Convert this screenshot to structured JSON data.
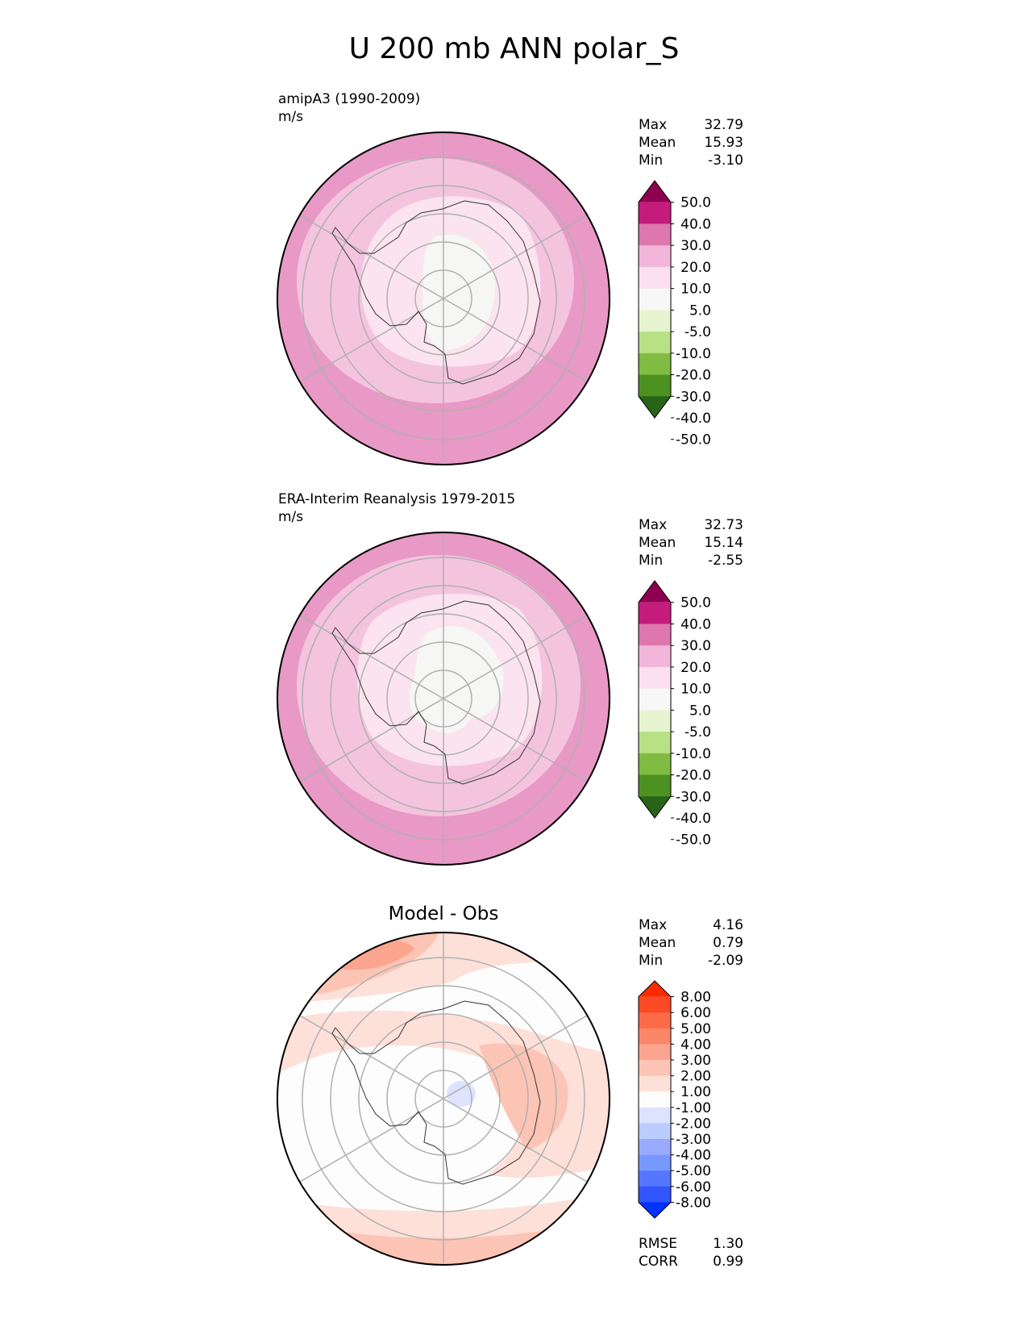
{
  "title": "U 200 mb ANN polar_S",
  "panels": [
    {
      "id": "test",
      "title_line1": "amipA3 (1990-2009)",
      "title_line2": "m/s",
      "stats": {
        "max_label": "Max",
        "max": "32.79",
        "mean_label": "Mean",
        "mean": "15.93",
        "min_label": "Min",
        "min": "-3.10"
      },
      "colorbar": {
        "colors": [
          "#276419",
          "#4d9221",
          "#7fbc41",
          "#b8e186",
          "#e6f5d0",
          "#f7f7f7",
          "#fde0ef",
          "#f1b6da",
          "#de77ae",
          "#c51b7d",
          "#8e0152"
        ],
        "labels": [
          "-50.0",
          "-40.0",
          "-30.0",
          "-20.0",
          "-10.0",
          "-5.0",
          "5.0",
          "10.0",
          "20.0",
          "30.0",
          "40.0",
          "50.0"
        ]
      }
    },
    {
      "id": "reference",
      "title_line1": "ERA-Interim Reanalysis 1979-2015",
      "title_line2": "m/s",
      "stats": {
        "max_label": "Max",
        "max": "32.73",
        "mean_label": "Mean",
        "mean": "15.14",
        "min_label": "Min",
        "min": "-2.55"
      },
      "colorbar": {
        "colors": [
          "#276419",
          "#4d9221",
          "#7fbc41",
          "#b8e186",
          "#e6f5d0",
          "#f7f7f7",
          "#fde0ef",
          "#f1b6da",
          "#de77ae",
          "#c51b7d",
          "#8e0152"
        ],
        "labels": [
          "-50.0",
          "-40.0",
          "-30.0",
          "-20.0",
          "-10.0",
          "-5.0",
          "5.0",
          "10.0",
          "20.0",
          "30.0",
          "40.0",
          "50.0"
        ]
      }
    },
    {
      "id": "diff",
      "center_title": "Model - Obs",
      "stats": {
        "max_label": "Max",
        "max": "4.16",
        "mean_label": "Mean",
        "mean": "0.79",
        "min_label": "Min",
        "min": "-2.09"
      },
      "metrics": {
        "rmse_label": "RMSE",
        "rmse": "1.30",
        "corr_label": "CORR",
        "corr": "0.99"
      },
      "colorbar": {
        "colors": [
          "#0033ff",
          "#3355ff",
          "#5577ff",
          "#7799ff",
          "#99aaff",
          "#bbccff",
          "#dde3ff",
          "#fdfdfd",
          "#fde0d8",
          "#fcc4b4",
          "#fca58e",
          "#fc8668",
          "#fc6a48",
          "#fc4a24",
          "#ff2a00"
        ],
        "labels": [
          "-8.00",
          "-6.00",
          "-5.00",
          "-4.00",
          "-3.00",
          "-2.00",
          "-1.00",
          "1.00",
          "2.00",
          "3.00",
          "4.00",
          "5.00",
          "6.00",
          "8.00"
        ]
      }
    }
  ],
  "chart_data": [
    {
      "type": "heatmap",
      "projection": "south polar stereographic",
      "title": "amipA3 (1990-2009)",
      "units": "m/s",
      "colorbar_levels": [
        -50,
        -40,
        -30,
        -20,
        -10,
        -5,
        5,
        10,
        20,
        30,
        40,
        50
      ],
      "max": 32.79,
      "mean": 15.93,
      "min": -3.1,
      "grid": true
    },
    {
      "type": "heatmap",
      "projection": "south polar stereographic",
      "title": "ERA-Interim Reanalysis 1979-2015",
      "units": "m/s",
      "colorbar_levels": [
        -50,
        -40,
        -30,
        -20,
        -10,
        -5,
        5,
        10,
        20,
        30,
        40,
        50
      ],
      "max": 32.73,
      "mean": 15.14,
      "min": -2.55,
      "grid": true
    },
    {
      "type": "heatmap",
      "projection": "south polar stereographic",
      "title": "Model - Obs",
      "colorbar_levels": [
        -8,
        -6,
        -5,
        -4,
        -3,
        -2,
        -1,
        1,
        2,
        3,
        4,
        5,
        6,
        8
      ],
      "max": 4.16,
      "mean": 0.79,
      "min": -2.09,
      "rmse": 1.3,
      "corr": 0.99,
      "grid": true
    }
  ]
}
